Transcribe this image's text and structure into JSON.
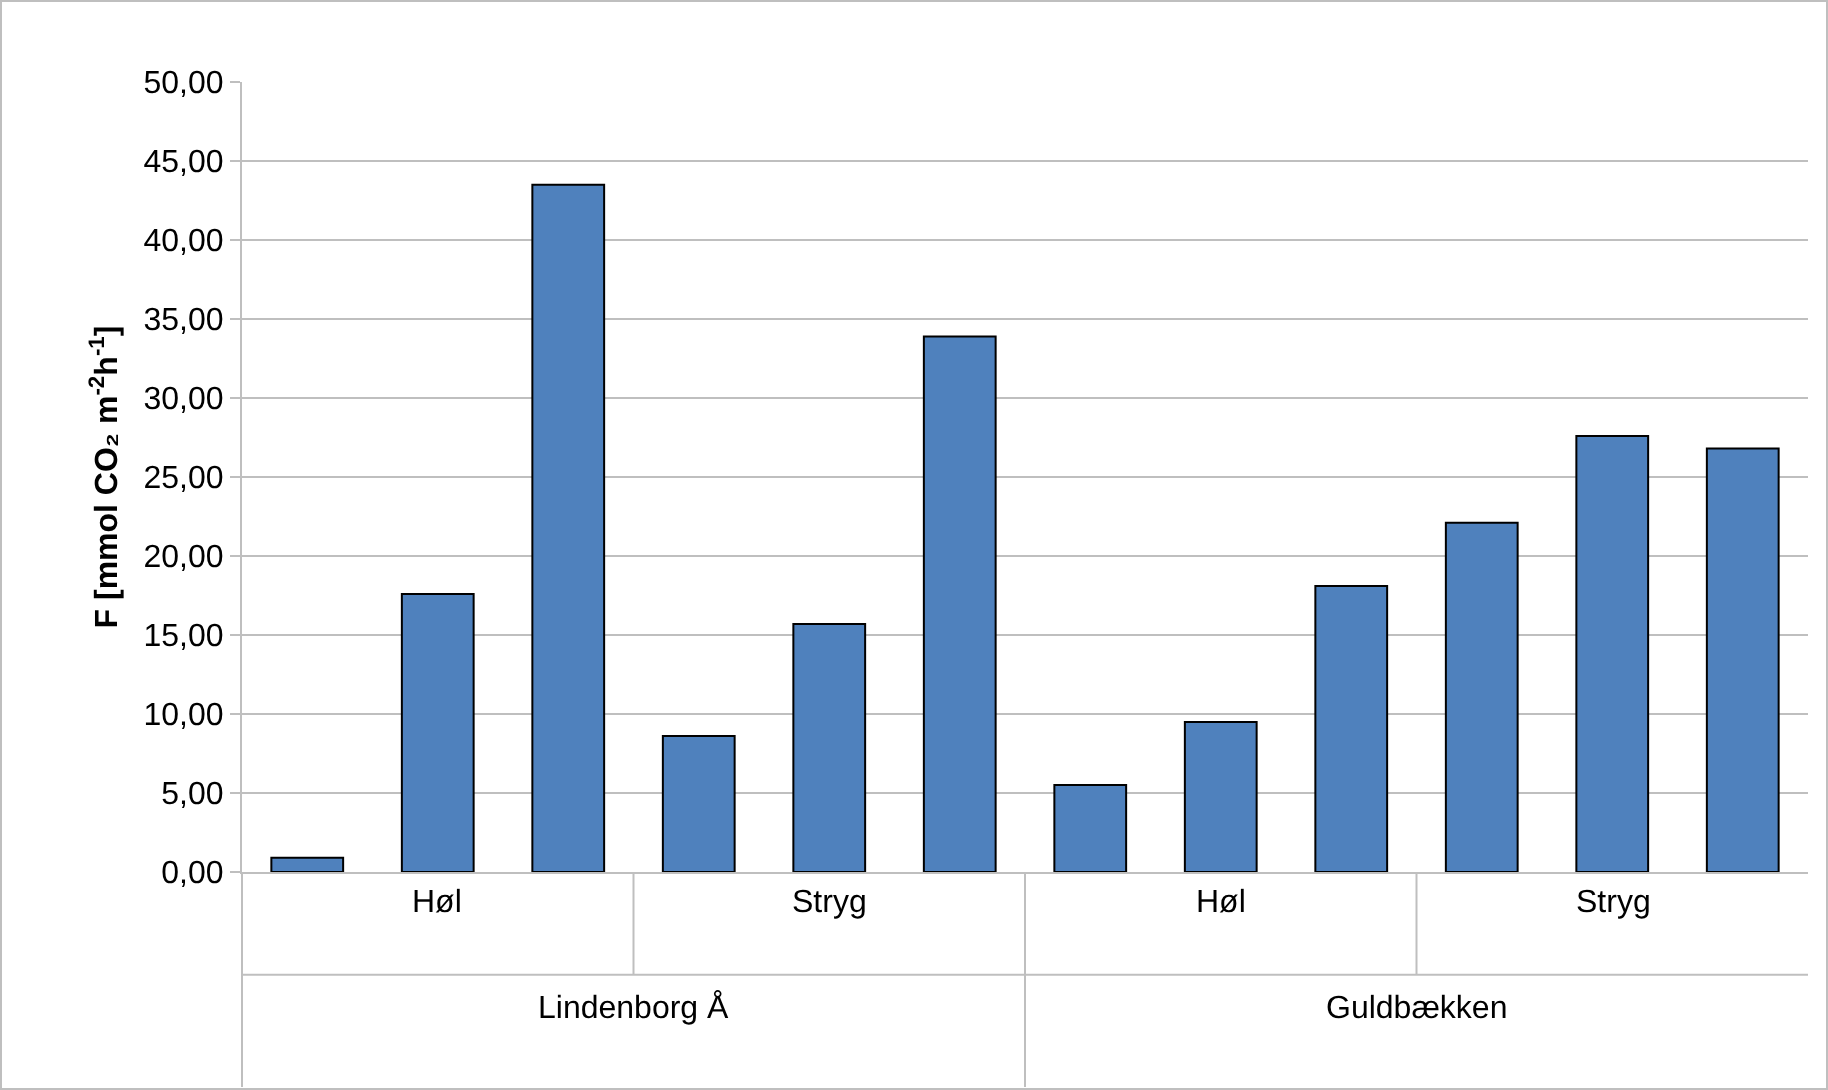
{
  "chart_data": {
    "type": "bar",
    "ylabel": "F [mmol CO₂ m$^{-2}$h$^{-1}$]",
    "categories": [
      null,
      null,
      null,
      null,
      null,
      null,
      null,
      null,
      null,
      null,
      null,
      null
    ],
    "values": [
      0.9,
      17.6,
      43.5,
      8.6,
      15.7,
      33.9,
      5.5,
      9.5,
      18.1,
      22.1,
      27.6,
      26.8
    ],
    "color": "#4f81bd",
    "ylim": [
      0,
      50
    ],
    "yticks": [
      {
        "value": 0,
        "label": "0,00"
      },
      {
        "value": 5,
        "label": "5,00"
      },
      {
        "value": 10,
        "label": "10,00"
      },
      {
        "value": 15,
        "label": "15,00"
      },
      {
        "value": 20,
        "label": "20,00"
      },
      {
        "value": 25,
        "label": "25,00"
      },
      {
        "value": 30,
        "label": "30,00"
      },
      {
        "value": 35,
        "label": "35,00"
      },
      {
        "value": 40,
        "label": "40,00"
      },
      {
        "value": 45,
        "label": "45,00"
      },
      {
        "value": 50,
        "label": "50,00"
      }
    ],
    "grid": "y",
    "annotations": [
      "Høl",
      "Stryg",
      "Høl",
      "Stryg",
      "Lindenborg Å",
      "Guldbækken"
    ]
  }
}
